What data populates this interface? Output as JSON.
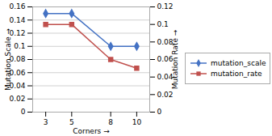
{
  "chart_data": {
    "type": "line",
    "xlabel": "Corners",
    "ylabel": "Mutation Scale",
    "y2label": "Mutation Rate",
    "x": [
      3,
      5,
      8,
      10
    ],
    "series": [
      {
        "name": "mutation_scale",
        "color": "#4472C4",
        "marker": "diamond",
        "values": [
          0.15,
          0.15,
          0.1,
          0.1
        ]
      },
      {
        "name": "mutation_rate",
        "color": "#c0504d",
        "marker": "square",
        "axis": "y2",
        "values": [
          0.1,
          0.1,
          0.06,
          0.05
        ]
      }
    ],
    "xlim": [
      2,
      11
    ],
    "xticks": [
      3,
      5,
      8,
      10
    ],
    "ylim": [
      0,
      0.16
    ],
    "yticks": [
      0,
      0.02,
      0.04,
      0.06,
      0.08,
      0.1,
      0.12,
      0.14,
      0.16
    ],
    "y2lim": [
      0,
      0.12
    ],
    "y2ticks": [
      0,
      0.02,
      0.04,
      0.06,
      0.08,
      0.1,
      0.12
    ],
    "grid": true,
    "legend": "right"
  }
}
